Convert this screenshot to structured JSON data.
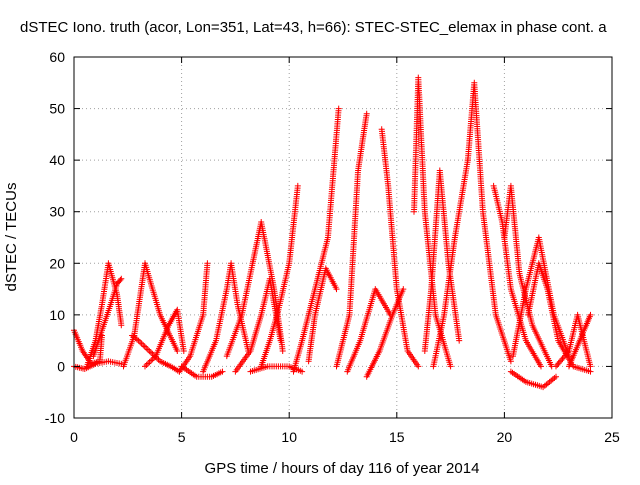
{
  "chart_data": {
    "type": "scatter",
    "title": "dSTEC Iono. truth (acor, Lon=351, Lat=43, h=66): STEC-STEC_elemax in phase cont. a",
    "xlabel": "GPS time / hours of day 116 of year 2014",
    "ylabel": "dSTEC  / TECUs",
    "xlim": [
      0,
      25
    ],
    "ylim": [
      -10,
      60
    ],
    "xticks": [
      0,
      5,
      10,
      15,
      20,
      25
    ],
    "yticks": [
      -10,
      0,
      10,
      20,
      30,
      40,
      50,
      60
    ],
    "grid": true,
    "legend": "none",
    "marker": "+",
    "color": "#ff0000",
    "arcs": [
      {
        "x": [
          0.0,
          0.4,
          0.8,
          1.2,
          1.3
        ],
        "y": [
          7,
          3,
          0.5,
          1,
          6
        ]
      },
      {
        "x": [
          0.0,
          0.5,
          1.0,
          1.6,
          2.2
        ],
        "y": [
          0,
          -0.5,
          0.5,
          1,
          0.5
        ]
      },
      {
        "x": [
          0.6,
          1.0,
          1.3,
          1.6,
          2.0,
          2.2
        ],
        "y": [
          0,
          5,
          12,
          20,
          14,
          8
        ]
      },
      {
        "x": [
          0.9,
          1.3,
          1.7,
          2.0,
          2.2
        ],
        "y": [
          2,
          7,
          12,
          16,
          17
        ]
      },
      {
        "x": [
          2.3,
          2.8,
          3.3,
          4.0,
          4.8
        ],
        "y": [
          0,
          6,
          20,
          10,
          3
        ]
      },
      {
        "x": [
          2.7,
          3.0,
          3.5,
          4.0,
          4.5,
          4.9
        ],
        "y": [
          6,
          5,
          3,
          1,
          0,
          -1
        ]
      },
      {
        "x": [
          3.3,
          3.8,
          4.4,
          4.8,
          5.1
        ],
        "y": [
          0,
          2,
          8,
          11,
          3
        ]
      },
      {
        "x": [
          4.9,
          5.4,
          6.0,
          6.2
        ],
        "y": [
          -1,
          2,
          10,
          20
        ]
      },
      {
        "x": [
          5.0,
          5.7,
          6.4,
          6.9
        ],
        "y": [
          0,
          -2,
          -2,
          -1
        ]
      },
      {
        "x": [
          6.0,
          6.6,
          7.1,
          7.3,
          7.6,
          8.1
        ],
        "y": [
          -1,
          5,
          15,
          20,
          12,
          3
        ]
      },
      {
        "x": [
          7.1,
          7.8,
          8.3,
          8.7,
          9.3,
          9.7
        ],
        "y": [
          2,
          10,
          20,
          28,
          15,
          3
        ]
      },
      {
        "x": [
          7.5,
          8.2,
          8.7,
          9.1,
          9.6
        ],
        "y": [
          -1,
          3,
          10,
          17,
          5
        ]
      },
      {
        "x": [
          8.7,
          9.1,
          9.5,
          10.0,
          10.4
        ],
        "y": [
          0,
          5,
          11,
          20,
          35
        ]
      },
      {
        "x": [
          8.2,
          9.0,
          10.0,
          10.6
        ],
        "y": [
          -1,
          0,
          0,
          -1
        ]
      },
      {
        "x": [
          10.2,
          10.6,
          11.2,
          11.8,
          12.3
        ],
        "y": [
          -1,
          5,
          15,
          25,
          50
        ]
      },
      {
        "x": [
          10.9,
          11.2,
          11.7,
          12.2
        ],
        "y": [
          1,
          10,
          19,
          15
        ]
      },
      {
        "x": [
          12.2,
          12.8,
          13.2,
          13.6
        ],
        "y": [
          0,
          10,
          38,
          49
        ]
      },
      {
        "x": [
          12.7,
          13.3,
          14.0,
          14.7
        ],
        "y": [
          -1,
          5,
          15,
          10
        ]
      },
      {
        "x": [
          14.3,
          14.6,
          15.0,
          15.5,
          16.0
        ],
        "y": [
          46,
          35,
          15,
          3,
          0
        ]
      },
      {
        "x": [
          13.6,
          14.2,
          14.8,
          15.3
        ],
        "y": [
          -2,
          3,
          10,
          15
        ]
      },
      {
        "x": [
          15.8,
          16.0,
          16.3,
          16.8,
          17.5
        ],
        "y": [
          30,
          56,
          30,
          10,
          0
        ]
      },
      {
        "x": [
          16.3,
          16.6,
          17.0,
          17.4,
          17.9
        ],
        "y": [
          3,
          15,
          38,
          20,
          5
        ]
      },
      {
        "x": [
          16.7,
          17.2,
          17.7,
          18.3
        ],
        "y": [
          0,
          10,
          25,
          40
        ]
      },
      {
        "x": [
          18.3,
          18.6,
          19.0,
          19.6,
          20.3
        ],
        "y": [
          40,
          55,
          30,
          10,
          1
        ]
      },
      {
        "x": [
          19.5,
          19.9,
          20.3,
          21.0,
          21.7
        ],
        "y": [
          35,
          28,
          15,
          5,
          0
        ]
      },
      {
        "x": [
          20.0,
          20.3,
          20.7,
          21.3,
          22.2
        ],
        "y": [
          25,
          35,
          18,
          8,
          0
        ]
      },
      {
        "x": [
          20.4,
          21.0,
          21.6,
          22.3,
          23.0
        ],
        "y": [
          2,
          15,
          25,
          10,
          2
        ]
      },
      {
        "x": [
          21.1,
          21.6,
          22.0,
          22.5,
          23.2,
          24.0
        ],
        "y": [
          10,
          20,
          15,
          5,
          0,
          -1
        ]
      },
      {
        "x": [
          20.3,
          21.0,
          21.8,
          22.4
        ],
        "y": [
          -1,
          -3,
          -4,
          -2
        ]
      },
      {
        "x": [
          22.4,
          23.0,
          23.4,
          24.0
        ],
        "y": [
          0,
          3,
          10,
          0
        ]
      },
      {
        "x": [
          23.0,
          23.4,
          23.8,
          24.0
        ],
        "y": [
          0,
          4,
          8,
          10
        ]
      }
    ]
  }
}
